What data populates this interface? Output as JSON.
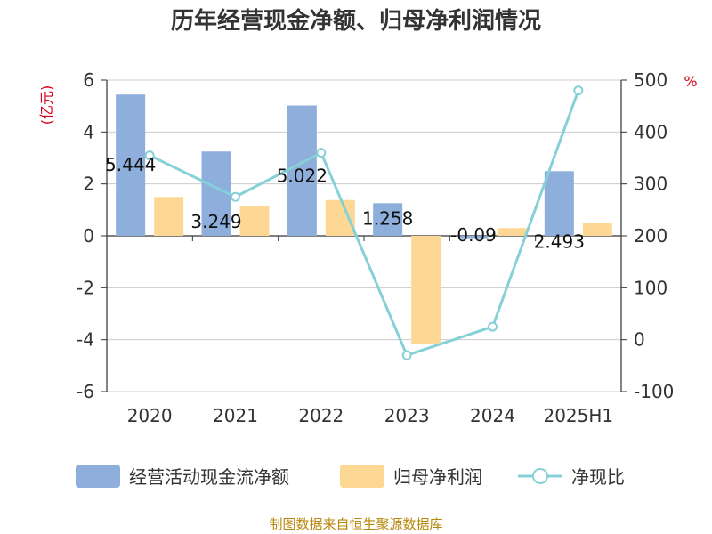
{
  "chart_data": {
    "type": "bar",
    "title": "历年经营现金净额、归母净利润情况",
    "categories": [
      "2020",
      "2021",
      "2022",
      "2023",
      "2024",
      "2025H1"
    ],
    "series": [
      {
        "name": "经营活动现金流净额",
        "type": "bar",
        "axis": "left",
        "values": [
          5.444,
          3.249,
          5.022,
          1.258,
          -0.09,
          2.493
        ],
        "labels": [
          "5.444",
          "3.249",
          "5.022",
          "1.258",
          "-0.09",
          "2.493"
        ],
        "color": "#8eaedc"
      },
      {
        "name": "归母净利润",
        "type": "bar",
        "axis": "left",
        "values": [
          1.5,
          1.15,
          1.38,
          -4.15,
          0.3,
          0.5
        ],
        "color": "#fdd895"
      },
      {
        "name": "净现比",
        "type": "line",
        "axis": "right",
        "values": [
          355,
          275,
          360,
          -30,
          25,
          480
        ],
        "color": "#86d0d8"
      }
    ],
    "left_axis": {
      "unit": "(亿元)",
      "ylim": [
        -6,
        6
      ],
      "ticks": [
        "-6",
        "-4",
        "-2",
        "0",
        "2",
        "4",
        "6"
      ]
    },
    "right_axis": {
      "unit": "%",
      "ylim": [
        -100,
        500
      ],
      "ticks": [
        "-100",
        "0",
        "100",
        "200",
        "300",
        "400",
        "500"
      ]
    },
    "grid": true,
    "legend_position": "bottom"
  },
  "source_text": "制图数据来自恒生聚源数据库"
}
